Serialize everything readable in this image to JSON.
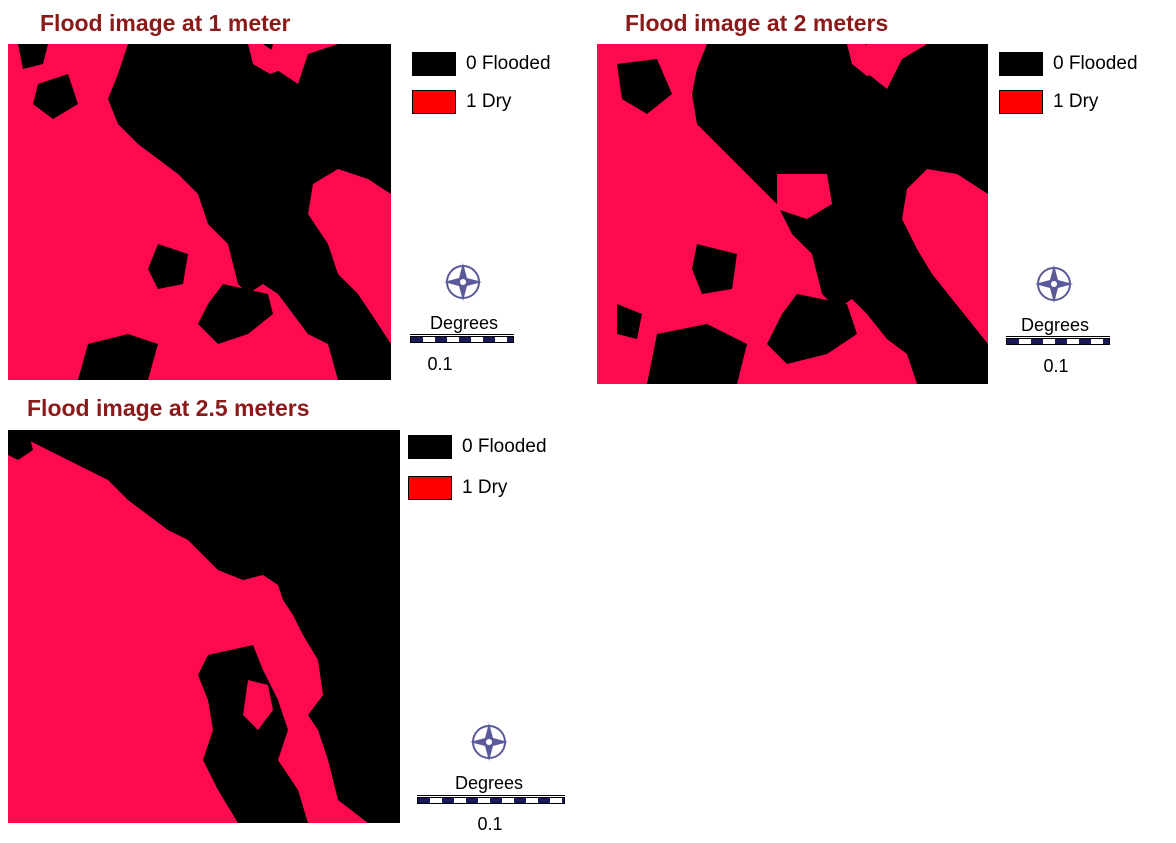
{
  "colors": {
    "flooded": "#000000",
    "dry": "#ff0a4f",
    "legend_dry": "#ff0000",
    "title": "#8b1a1a",
    "north_arrow": "#5a5a9a"
  },
  "panels": [
    {
      "title": "Flood image at 1 meter",
      "legend": [
        {
          "label": "0 Flooded",
          "value": 0,
          "class": "flooded"
        },
        {
          "label": "1 Dry",
          "value": 1,
          "class": "dry"
        }
      ],
      "scale": {
        "unit": "Degrees",
        "value": "0.1"
      },
      "north_icon": "north-arrow-compass-icon"
    },
    {
      "title": "Flood image at 2 meters",
      "legend": [
        {
          "label": "0 Flooded",
          "value": 0,
          "class": "flooded"
        },
        {
          "label": "1 Dry",
          "value": 1,
          "class": "dry"
        }
      ],
      "scale": {
        "unit": "Degrees",
        "value": "0.1"
      },
      "north_icon": "north-arrow-compass-icon"
    },
    {
      "title": "Flood image at 2.5 meters",
      "legend": [
        {
          "label": "0 Flooded",
          "value": 0,
          "class": "flooded"
        },
        {
          "label": "1 Dry",
          "value": 1,
          "class": "dry"
        }
      ],
      "scale": {
        "unit": "Degrees",
        "value": "0.1"
      },
      "north_icon": "north-arrow-compass-icon"
    }
  ]
}
